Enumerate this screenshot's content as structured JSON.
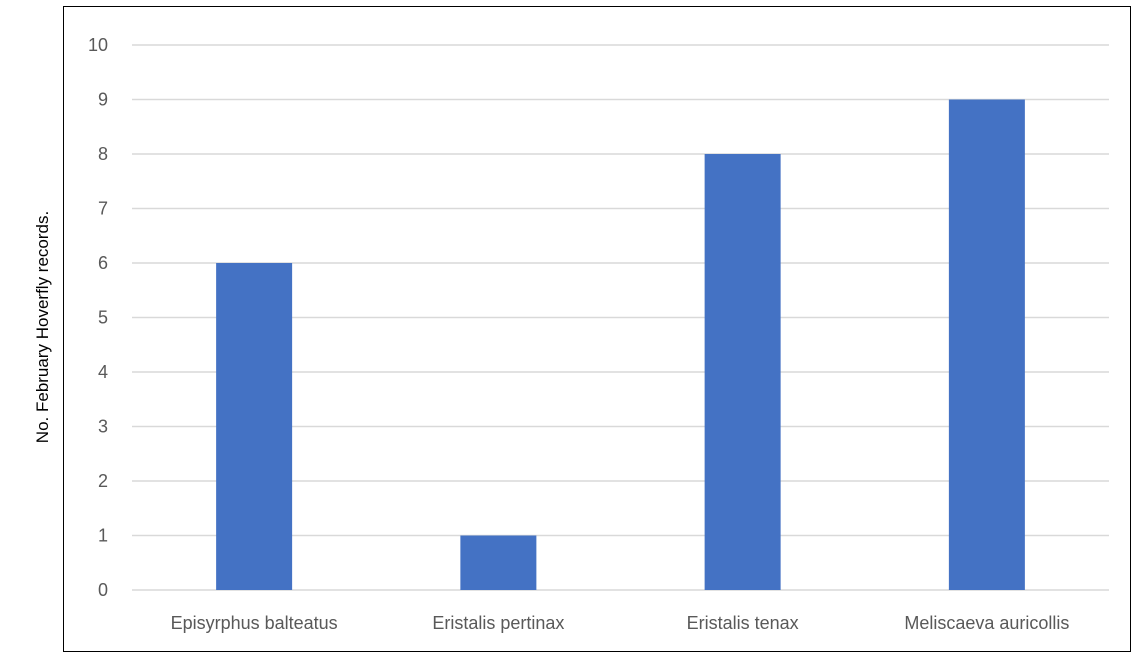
{
  "chart_data": {
    "type": "bar",
    "title": "",
    "xlabel": "",
    "ylabel": "No. February Hoverfly records.",
    "categories": [
      "Episyrphus balteatus",
      "Eristalis pertinax",
      "Eristalis tenax",
      "Meliscaeva auricollis"
    ],
    "values": [
      6,
      1,
      8,
      9
    ],
    "ylim": [
      0,
      10
    ],
    "yticks": [
      "0",
      "1",
      "2",
      "3",
      "4",
      "5",
      "6",
      "7",
      "8",
      "9",
      "10"
    ],
    "grid": true,
    "legend": "none",
    "colors": {
      "bar": "#4472C4",
      "grid": "#D9D9D9",
      "tick_text": "#595959"
    }
  }
}
